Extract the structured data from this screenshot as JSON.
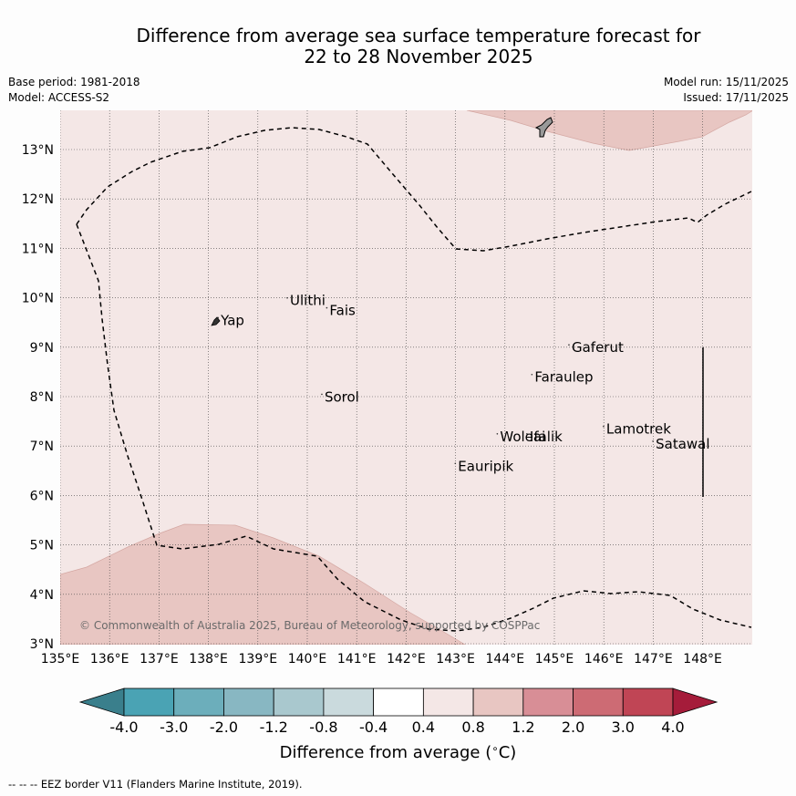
{
  "title": {
    "line1": "Difference from average sea surface temperature forecast for",
    "line2": "22 to 28 November 2025"
  },
  "meta": {
    "base_period": "Base period: 1981-2018",
    "model": "Model: ACCESS-S2",
    "model_run": "Model run: 15/11/2025",
    "issued": "Issued: 17/11/2025"
  },
  "map": {
    "lon_range": [
      135,
      149
    ],
    "lat_range": [
      3,
      13.8
    ],
    "lon_ticks": [
      "135°E",
      "136°E",
      "137°E",
      "138°E",
      "139°E",
      "140°E",
      "141°E",
      "142°E",
      "143°E",
      "144°E",
      "145°E",
      "146°E",
      "147°E",
      "148°E"
    ],
    "lat_ticks": [
      "3°N",
      "4°N",
      "5°N",
      "6°N",
      "7°N",
      "8°N",
      "9°N",
      "10°N",
      "11°N",
      "12°N",
      "13°N"
    ],
    "background_color": "#f4e7e6",
    "warm_color": "#e8c6c2",
    "copyright": "© Commonwealth of Australia 2025, Bureau of Meteorology, supported by COSPPac",
    "islands": [
      {
        "name": "Yap",
        "lon": 138.25,
        "lat": 9.45
      },
      {
        "name": "Ulithi",
        "lon": 139.65,
        "lat": 9.85
      },
      {
        "name": "Fais",
        "lon": 140.45,
        "lat": 9.65
      },
      {
        "name": "Sorol",
        "lon": 140.35,
        "lat": 7.9
      },
      {
        "name": "Gaferut",
        "lon": 145.35,
        "lat": 8.9
      },
      {
        "name": "Faraulep",
        "lon": 144.6,
        "lat": 8.3
      },
      {
        "name": "Woleai",
        "lon": 143.9,
        "lat": 7.1
      },
      {
        "name": "Ifalik",
        "lon": 144.5,
        "lat": 7.1
      },
      {
        "name": "Lamotrek",
        "lon": 146.05,
        "lat": 7.25
      },
      {
        "name": "Satawal",
        "lon": 147.05,
        "lat": 6.95
      },
      {
        "name": "Eauripik",
        "lon": 143.05,
        "lat": 6.5
      }
    ]
  },
  "colorbar": {
    "tick_labels": [
      "-4.0",
      "-3.0",
      "-2.0",
      "-1.2",
      "-0.8",
      "-0.4",
      "0.4",
      "0.8",
      "1.2",
      "2.0",
      "3.0",
      "4.0"
    ],
    "colors": [
      "#3a7f8c",
      "#4aa3b4",
      "#6caebb",
      "#88b7c2",
      "#a9c8ce",
      "#cadadd",
      "#ffffff",
      "#f4e7e6",
      "#e8c6c2",
      "#d88e96",
      "#cd6b74",
      "#c04555",
      "#a51c3a"
    ],
    "label": "Difference from average (",
    "label_unit": "C)",
    "label_degree": "∘"
  },
  "footer": "-- -- -- EEZ border V11 (Flanders Marine Institute, 2019)."
}
